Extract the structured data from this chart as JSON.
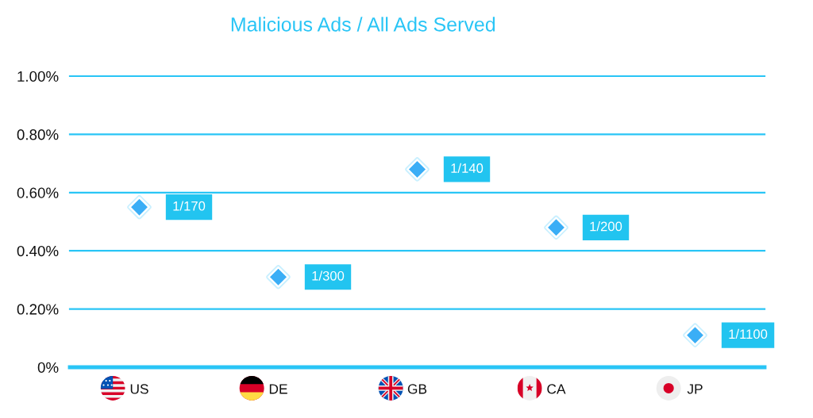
{
  "chart_data": {
    "type": "scatter",
    "title": "Malicious Ads / All Ads Served",
    "categories": [
      "US",
      "DE",
      "GB",
      "CA",
      "JP"
    ],
    "values": [
      0.55,
      0.31,
      0.68,
      0.48,
      0.11
    ],
    "value_labels": [
      "1/170",
      "1/300",
      "1/140",
      "1/200",
      "1/1100"
    ],
    "color": "#3aaef6",
    "marker": "diamond",
    "ylim": [
      0,
      1.0
    ],
    "yticks": [
      {
        "value": 0,
        "label": "0%"
      },
      {
        "value": 0.2,
        "label": "0.20%"
      },
      {
        "value": 0.4,
        "label": "0.40%"
      },
      {
        "value": 0.6,
        "label": "0.60%"
      },
      {
        "value": 0.8,
        "label": "0.80%"
      },
      {
        "value": 1.0,
        "label": "1.00%"
      }
    ],
    "grid": "y"
  }
}
